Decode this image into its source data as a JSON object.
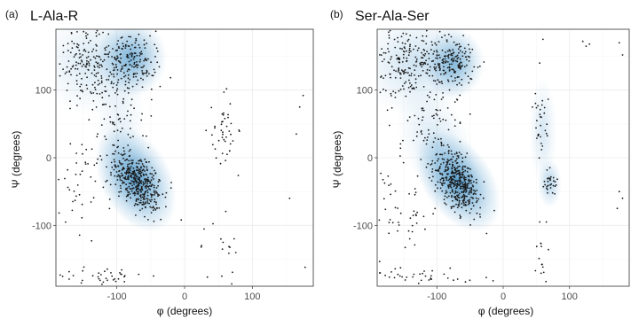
{
  "chart_data": [
    {
      "type": "scatter",
      "panel_label": "(a)",
      "title": "L-Ala-R",
      "xlabel": "φ (degrees)",
      "ylabel": "Ψ (degrees)",
      "xlim": [
        -190,
        190
      ],
      "ylim": [
        -190,
        190
      ],
      "x_ticks": [
        -100,
        0,
        100
      ],
      "y_ticks": [
        -100,
        0,
        100
      ],
      "tick_labels_x": [
        "-100",
        "0",
        "100"
      ],
      "tick_labels_y": [
        "-100",
        "0",
        "100"
      ],
      "grid": true,
      "point_color": "#1a1a1a",
      "density_color": "#3c8fc7",
      "density_regions": [
        {
          "x": -72,
          "y": -32,
          "sx": 20,
          "sy": 32,
          "rho": 0.35,
          "weight": 1.0
        },
        {
          "x": -78,
          "y": 148,
          "sx": 20,
          "sy": 22,
          "rho": 0.0,
          "weight": 0.75
        },
        {
          "x": -130,
          "y": 140,
          "sx": 35,
          "sy": 30,
          "rho": 0.0,
          "weight": 0.25
        },
        {
          "x": -95,
          "y": 40,
          "sx": 15,
          "sy": 40,
          "rho": 0.0,
          "weight": 0.15
        }
      ],
      "scatter_clusters": [
        {
          "x": -70,
          "y": -35,
          "sx": 18,
          "sy": 22,
          "rho": 0.4,
          "n": 420
        },
        {
          "x": -75,
          "y": 145,
          "sx": 18,
          "sy": 20,
          "rho": 0.0,
          "n": 160
        },
        {
          "x": -140,
          "y": 140,
          "sx": 28,
          "sy": 28,
          "rho": 0.0,
          "n": 200
        },
        {
          "x": -105,
          "y": 60,
          "sx": 25,
          "sy": 40,
          "rho": 0.0,
          "n": 80
        },
        {
          "x": -155,
          "y": -50,
          "sx": 20,
          "sy": 40,
          "rho": 0.0,
          "n": 40
        },
        {
          "x": -120,
          "y": -175,
          "sx": 40,
          "sy": 6,
          "rho": 0.0,
          "n": 38
        },
        {
          "x": 58,
          "y": 35,
          "sx": 10,
          "sy": 25,
          "rho": 0.0,
          "n": 40
        },
        {
          "x": 62,
          "y": -120,
          "sx": 12,
          "sy": 50,
          "rho": 0.0,
          "n": 18
        }
      ],
      "extra_points": [
        {
          "x": 175,
          "y": 92
        },
        {
          "x": 170,
          "y": 75
        },
        {
          "x": 165,
          "y": 35
        },
        {
          "x": 155,
          "y": -60
        },
        {
          "x": 178,
          "y": -162
        },
        {
          "x": -5,
          "y": -92
        },
        {
          "x": 25,
          "y": -130
        },
        {
          "x": 55,
          "y": -175
        },
        {
          "x": 62,
          "y": 102
        },
        {
          "x": 58,
          "y": 97
        }
      ]
    },
    {
      "type": "scatter",
      "panel_label": "(b)",
      "title": "Ser-Ala-Ser",
      "xlabel": "φ (degrees)",
      "ylabel": "Ψ (degrees)",
      "xlim": [
        -190,
        190
      ],
      "ylim": [
        -190,
        190
      ],
      "x_ticks": [
        -100,
        0,
        100
      ],
      "y_ticks": [
        -100,
        0,
        100
      ],
      "tick_labels_x": [
        "-100",
        "0",
        "100"
      ],
      "tick_labels_y": [
        "-100",
        "0",
        "100"
      ],
      "grid": true,
      "point_color": "#1a1a1a",
      "density_color": "#3c8fc7",
      "density_regions": [
        {
          "x": -68,
          "y": -35,
          "sx": 20,
          "sy": 32,
          "rho": 0.45,
          "weight": 1.0
        },
        {
          "x": -75,
          "y": 140,
          "sx": 18,
          "sy": 20,
          "rho": 0.0,
          "weight": 0.7
        },
        {
          "x": -130,
          "y": 140,
          "sx": 35,
          "sy": 30,
          "rho": 0.0,
          "weight": 0.3
        },
        {
          "x": -100,
          "y": 20,
          "sx": 20,
          "sy": 35,
          "rho": 0.3,
          "weight": 0.25
        },
        {
          "x": 60,
          "y": 40,
          "sx": 8,
          "sy": 30,
          "rho": 0.0,
          "weight": 0.25
        },
        {
          "x": 70,
          "y": -38,
          "sx": 7,
          "sy": 14,
          "rho": 0.0,
          "weight": 0.45
        }
      ],
      "scatter_clusters": [
        {
          "x": -68,
          "y": -38,
          "sx": 17,
          "sy": 22,
          "rho": 0.45,
          "n": 400
        },
        {
          "x": -75,
          "y": 140,
          "sx": 16,
          "sy": 18,
          "rho": 0.0,
          "n": 150
        },
        {
          "x": -140,
          "y": 140,
          "sx": 30,
          "sy": 28,
          "rho": 0.0,
          "n": 230
        },
        {
          "x": -105,
          "y": 40,
          "sx": 25,
          "sy": 40,
          "rho": 0.0,
          "n": 80
        },
        {
          "x": -150,
          "y": -70,
          "sx": 18,
          "sy": 45,
          "rho": 0.0,
          "n": 45
        },
        {
          "x": -130,
          "y": -175,
          "sx": 40,
          "sy": 6,
          "rho": 0.0,
          "n": 40
        },
        {
          "x": 58,
          "y": 50,
          "sx": 6,
          "sy": 30,
          "rho": 0.0,
          "n": 30
        },
        {
          "x": 70,
          "y": -38,
          "sx": 5,
          "sy": 8,
          "rho": 0.0,
          "n": 30
        },
        {
          "x": 60,
          "y": -160,
          "sx": 6,
          "sy": 20,
          "rho": 0.0,
          "n": 14
        }
      ],
      "extra_points": [
        {
          "x": 120,
          "y": 172
        },
        {
          "x": 125,
          "y": 165
        },
        {
          "x": 130,
          "y": 168
        },
        {
          "x": 175,
          "y": 170
        },
        {
          "x": 180,
          "y": 152
        },
        {
          "x": 175,
          "y": -50
        },
        {
          "x": 172,
          "y": -75
        },
        {
          "x": 180,
          "y": -60
        },
        {
          "x": -25,
          "y": -112
        },
        {
          "x": 55,
          "y": 140
        },
        {
          "x": 60,
          "y": 175
        },
        {
          "x": 55,
          "y": -95
        },
        {
          "x": 65,
          "y": -95
        }
      ]
    }
  ]
}
